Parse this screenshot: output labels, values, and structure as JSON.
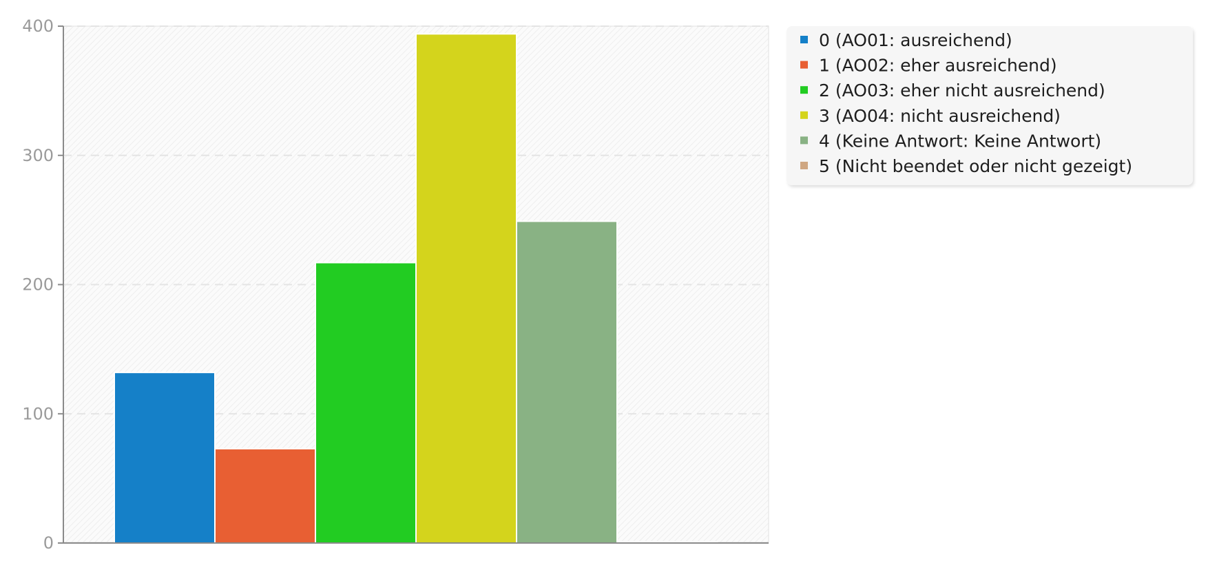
{
  "chart_data": {
    "type": "bar",
    "title": "",
    "xlabel": "",
    "ylabel": "",
    "ylim": [
      0,
      400
    ],
    "yticks": [
      0,
      100,
      200,
      300,
      400
    ],
    "grid": "horizontal dashed",
    "legend_position": "right",
    "categories": [
      "0",
      "1",
      "2",
      "3",
      "4",
      "5"
    ],
    "values": [
      132,
      73,
      217,
      394,
      249,
      1
    ],
    "colors": [
      "#1580c8",
      "#e85f33",
      "#22cc22",
      "#d4d41c",
      "#89b284",
      "#cfa782"
    ],
    "legend": [
      "0 (AO01: ausreichend)",
      "1 (AO02: eher ausreichend)",
      "2 (AO03: eher nicht ausreichend)",
      "3 (AO04: nicht ausreichend)",
      "4 (Keine Antwort: Keine Antwort)",
      "5 (Nicht beendet oder nicht gezeigt)"
    ]
  }
}
